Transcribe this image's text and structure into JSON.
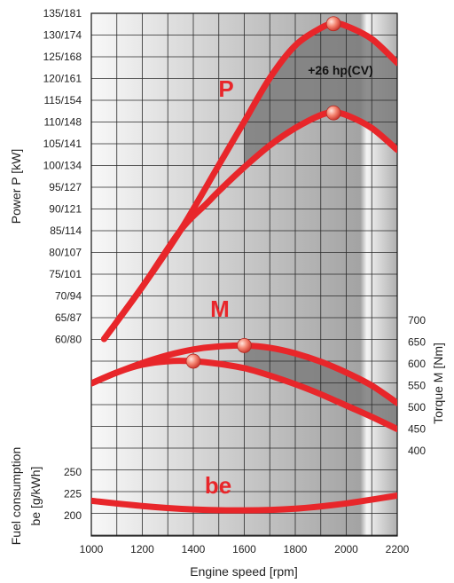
{
  "chart_data": {
    "type": "line",
    "xlabel": "Engine speed [rpm]",
    "x_ticks": [
      "1000",
      "1200",
      "1400",
      "1600",
      "1800",
      "2000",
      "2200"
    ],
    "xlim": [
      1000,
      2200
    ],
    "power_axis": {
      "label": "Power P [kW]",
      "ticks": [
        "135/181",
        "130/174",
        "125/168",
        "120/161",
        "115/154",
        "110/148",
        "105/141",
        "100/134",
        "95/127",
        "90/121",
        "85/114",
        "80/107",
        "75/101",
        "70/94",
        "65/87",
        "60/80"
      ],
      "ylim_kw": [
        57.5,
        135
      ]
    },
    "torque_axis": {
      "label": "Torque M [Nm]",
      "ticks": [
        "700",
        "650",
        "600",
        "550",
        "500",
        "450",
        "400"
      ],
      "ylim": [
        400,
        700
      ]
    },
    "fuel_axis": {
      "label_line1": "Fuel consumption",
      "label_line2": "be [g/kWh]",
      "ticks": [
        "250",
        "225",
        "200"
      ],
      "ylim": [
        200,
        250
      ]
    },
    "curve_labels": {
      "power": "P",
      "torque": "M",
      "fuel": "be"
    },
    "annotation": "+26 hp(CV)",
    "series": [
      {
        "axis": "power",
        "key": "p_high",
        "x": [
          1050,
          1200,
          1350,
          1500,
          1600,
          1700,
          1800,
          1900,
          1950,
          2000,
          2100,
          2200
        ],
        "y": [
          60,
          72,
          85,
          100,
          110,
          120,
          127.5,
          131.5,
          132.5,
          132,
          129,
          123.5
        ]
      },
      {
        "axis": "power",
        "key": "p_low",
        "x": [
          1050,
          1200,
          1350,
          1450,
          1500,
          1600,
          1700,
          1800,
          1900,
          1950,
          2000,
          2100,
          2200
        ],
        "y": [
          60,
          72,
          85,
          91,
          94,
          99.5,
          104.5,
          108.5,
          111.5,
          112,
          111.5,
          108.5,
          103.5
        ]
      },
      {
        "axis": "torque",
        "key": "m_high",
        "x": [
          1000,
          1100,
          1200,
          1300,
          1400,
          1500,
          1600,
          1700,
          1800,
          1900,
          2000,
          2100,
          2200
        ],
        "y": [
          555,
          580,
          602,
          620,
          633,
          640,
          642,
          637,
          624,
          605,
          580,
          550,
          510
        ]
      },
      {
        "axis": "torque",
        "key": "m_low",
        "x": [
          1000,
          1100,
          1200,
          1300,
          1400,
          1500,
          1600,
          1700,
          1800,
          1900,
          2000,
          2100,
          2200
        ],
        "y": [
          555,
          580,
          598,
          606,
          606,
          600,
          590,
          573,
          553,
          530,
          504,
          478,
          450
        ]
      },
      {
        "axis": "fuel",
        "key": "be",
        "x": [
          1000,
          1200,
          1400,
          1600,
          1800,
          2000,
          2200
        ],
        "y": [
          217,
          211,
          207,
          206,
          208,
          214,
          223
        ]
      }
    ],
    "markers": [
      {
        "axis": "power",
        "x": 1950,
        "y": 132.5
      },
      {
        "axis": "power",
        "x": 1950,
        "y": 112
      },
      {
        "axis": "torque",
        "x": 1600,
        "y": 642
      },
      {
        "axis": "torque",
        "x": 1400,
        "y": 606
      }
    ],
    "colors": {
      "curve": "#e8262a",
      "grid": "#2a2a2a",
      "shade": "#7d7d7d",
      "marker": "#f26b5e"
    },
    "grid": true
  }
}
